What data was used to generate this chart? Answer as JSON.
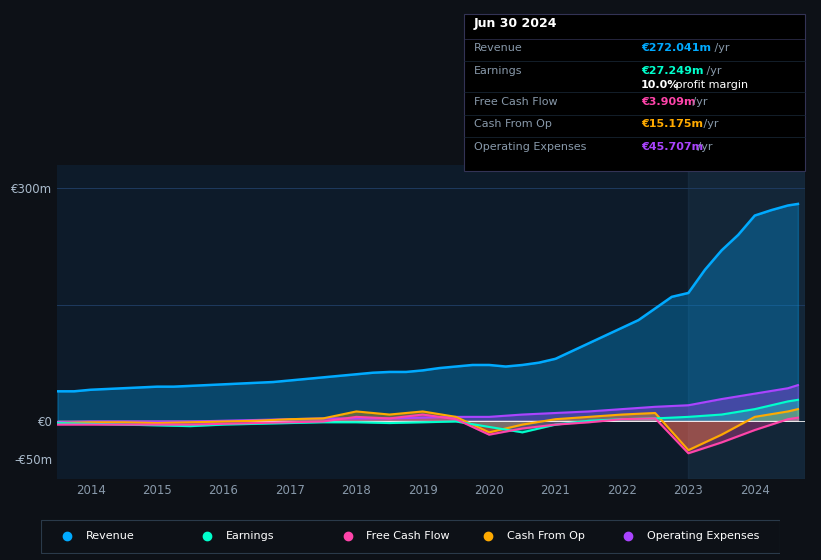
{
  "bg_color": "#0d1117",
  "plot_bg_color": "#0d1b2a",
  "grid_color": "#1e3a5f",
  "text_color": "#8899aa",
  "ax_label_color": "#aabbcc",
  "ylim": [
    -75,
    330
  ],
  "xmin": 2013.5,
  "xmax": 2024.75,
  "revenue_color": "#00aaff",
  "earnings_color": "#00ffcc",
  "fcf_color": "#ff44aa",
  "cashfromop_color": "#ffaa00",
  "opex_color": "#aa44ff",
  "info_box": {
    "date": "Jun 30 2024",
    "revenue_val": "€272.041m",
    "revenue_color": "#00aaff",
    "earnings_val": "€27.249m",
    "earnings_color": "#00ffcc",
    "profit_margin": "10.0%",
    "fcf_val": "€3.909m",
    "fcf_color": "#ff44aa",
    "cashfromop_val": "€15.175m",
    "cashfromop_color": "#ffaa00",
    "opex_val": "€45.707m",
    "opex_color": "#aa44ff"
  },
  "legend_items": [
    {
      "label": "Revenue",
      "color": "#00aaff"
    },
    {
      "label": "Earnings",
      "color": "#00ffcc"
    },
    {
      "label": "Free Cash Flow",
      "color": "#ff44aa"
    },
    {
      "label": "Cash From Op",
      "color": "#ffaa00"
    },
    {
      "label": "Operating Expenses",
      "color": "#aa44ff"
    }
  ],
  "revenue_x": [
    2013.5,
    2013.75,
    2014.0,
    2014.25,
    2014.5,
    2014.75,
    2015.0,
    2015.25,
    2015.5,
    2015.75,
    2016.0,
    2016.25,
    2016.5,
    2016.75,
    2017.0,
    2017.25,
    2017.5,
    2017.75,
    2018.0,
    2018.25,
    2018.5,
    2018.75,
    2019.0,
    2019.25,
    2019.5,
    2019.75,
    2020.0,
    2020.25,
    2020.5,
    2020.75,
    2021.0,
    2021.25,
    2021.5,
    2021.75,
    2022.0,
    2022.25,
    2022.5,
    2022.75,
    2023.0,
    2023.25,
    2023.5,
    2023.75,
    2024.0,
    2024.25,
    2024.5,
    2024.65
  ],
  "revenue_y": [
    38,
    38,
    40,
    41,
    42,
    43,
    44,
    44,
    45,
    46,
    47,
    48,
    49,
    50,
    52,
    54,
    56,
    58,
    60,
    62,
    63,
    63,
    65,
    68,
    70,
    72,
    72,
    70,
    72,
    75,
    80,
    90,
    100,
    110,
    120,
    130,
    145,
    160,
    165,
    195,
    220,
    240,
    265,
    272,
    278,
    280
  ],
  "earnings_x": [
    2013.5,
    2014.0,
    2014.5,
    2015.0,
    2015.5,
    2016.0,
    2016.5,
    2017.0,
    2017.5,
    2018.0,
    2018.5,
    2019.0,
    2019.5,
    2020.0,
    2020.5,
    2021.0,
    2021.5,
    2022.0,
    2022.5,
    2023.0,
    2023.5,
    2024.0,
    2024.5,
    2024.65
  ],
  "earnings_y": [
    -3,
    -4,
    -5,
    -6,
    -7,
    -5,
    -4,
    -3,
    -2,
    -2,
    -3,
    -2,
    -1,
    -8,
    -15,
    -5,
    0,
    2,
    3,
    5,
    8,
    15,
    25,
    27
  ],
  "fcf_x": [
    2013.5,
    2014.0,
    2014.5,
    2015.0,
    2015.5,
    2016.0,
    2016.5,
    2017.0,
    2017.5,
    2018.0,
    2018.5,
    2019.0,
    2019.5,
    2020.0,
    2020.5,
    2021.0,
    2021.5,
    2022.0,
    2022.5,
    2023.0,
    2023.5,
    2024.0,
    2024.5,
    2024.65
  ],
  "fcf_y": [
    -5,
    -5,
    -5,
    -5,
    -5,
    -4,
    -3,
    -2,
    -1,
    5,
    3,
    8,
    2,
    -18,
    -10,
    -5,
    -2,
    2,
    3,
    -42,
    -28,
    -12,
    2,
    4
  ],
  "cashfromop_x": [
    2013.5,
    2014.0,
    2014.5,
    2015.0,
    2015.5,
    2016.0,
    2016.5,
    2017.0,
    2017.5,
    2018.0,
    2018.5,
    2019.0,
    2019.5,
    2020.0,
    2020.5,
    2021.0,
    2021.5,
    2022.0,
    2022.5,
    2023.0,
    2023.5,
    2024.0,
    2024.5,
    2024.65
  ],
  "cashfromop_y": [
    -3,
    -2,
    -2,
    -3,
    -2,
    -1,
    0,
    2,
    3,
    12,
    8,
    12,
    5,
    -15,
    -5,
    2,
    5,
    8,
    10,
    -38,
    -18,
    5,
    12,
    15
  ],
  "opex_x": [
    2013.5,
    2014.0,
    2014.5,
    2015.0,
    2015.5,
    2016.0,
    2016.5,
    2017.0,
    2017.5,
    2018.0,
    2018.5,
    2019.0,
    2019.5,
    2020.0,
    2020.5,
    2021.0,
    2021.5,
    2022.0,
    2022.5,
    2023.0,
    2023.5,
    2024.0,
    2024.5,
    2024.65
  ],
  "opex_y": [
    -2,
    -1,
    -1,
    -1,
    -1,
    0,
    1,
    2,
    3,
    3,
    3,
    4,
    5,
    5,
    8,
    10,
    12,
    15,
    18,
    20,
    28,
    35,
    42,
    46
  ]
}
